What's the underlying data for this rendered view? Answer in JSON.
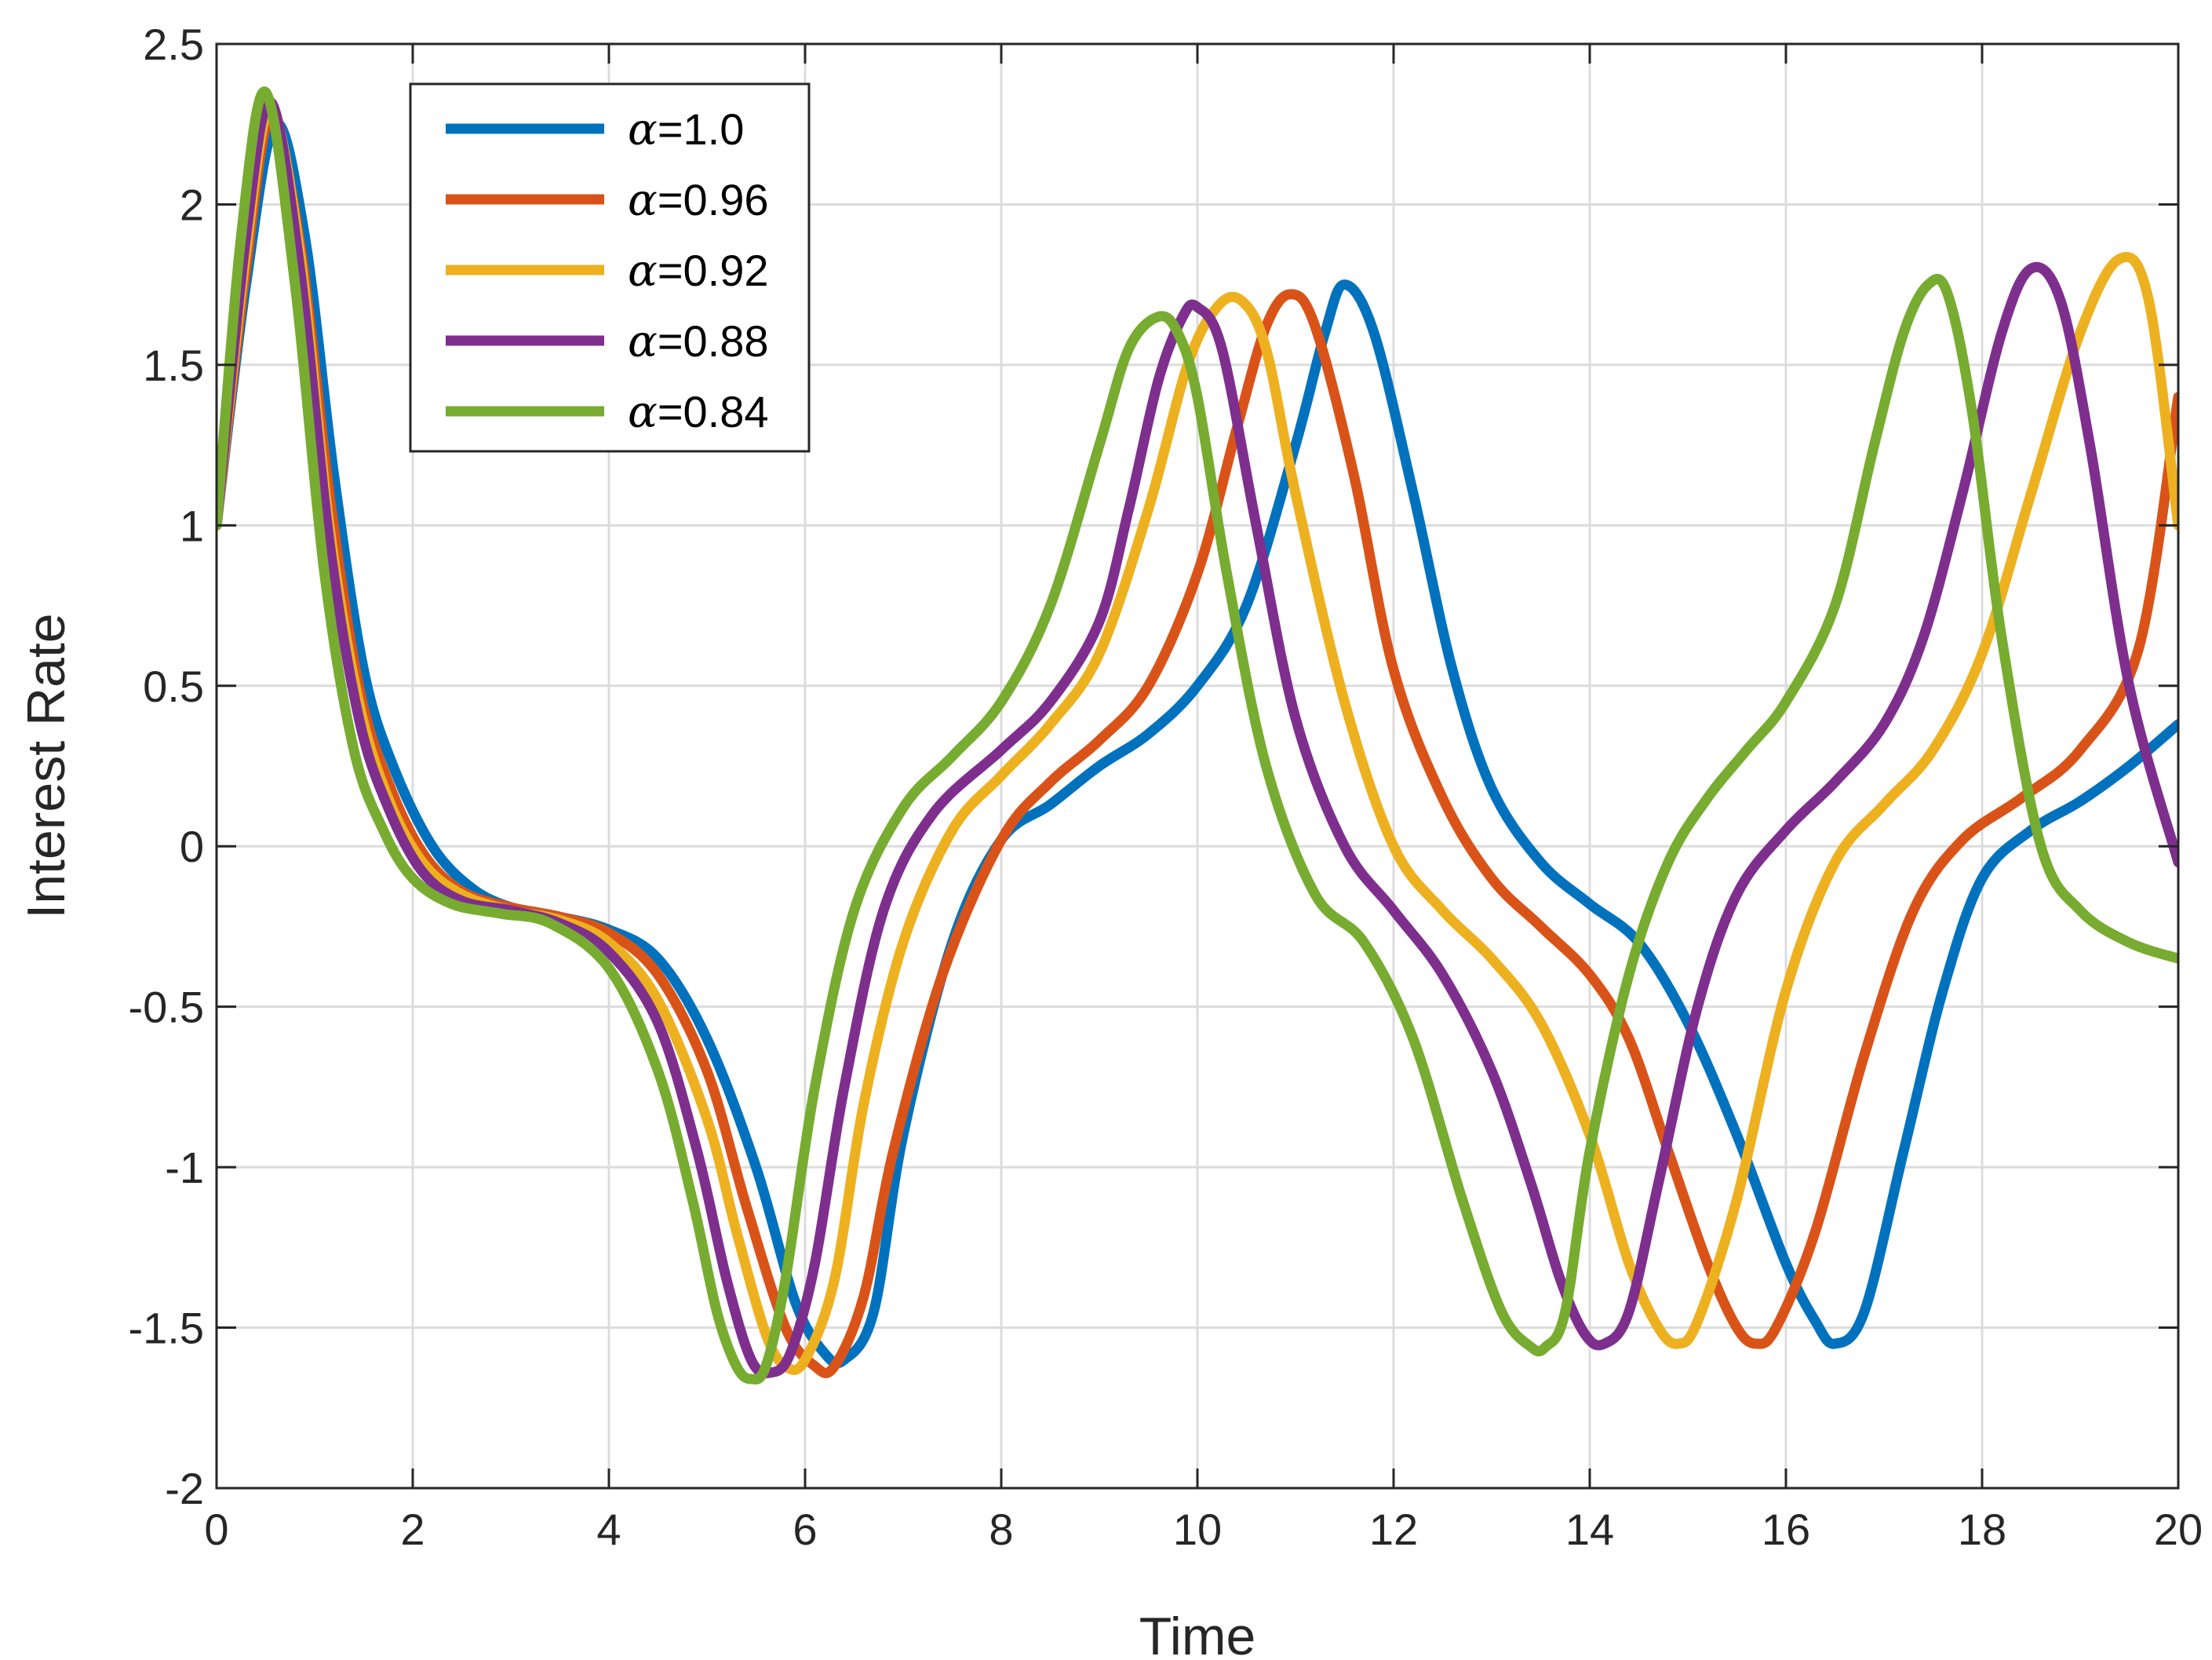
{
  "chart_data": {
    "type": "line",
    "title": "",
    "xlabel": "Time",
    "ylabel": "Interest Rate",
    "xlim": [
      0,
      20
    ],
    "ylim": [
      -2,
      2.5
    ],
    "xticks": [
      0,
      2,
      4,
      6,
      8,
      10,
      12,
      14,
      16,
      18,
      20
    ],
    "xtick_labels": [
      "0",
      "2",
      "4",
      "6",
      "8",
      "10",
      "12",
      "14",
      "16",
      "18",
      "20"
    ],
    "yticks": [
      -2,
      -1.5,
      -1,
      -0.5,
      0,
      0.5,
      1,
      1.5,
      2,
      2.5
    ],
    "ytick_labels": [
      "-2",
      "-1.5",
      "-1",
      "-0.5",
      "0",
      "0.5",
      "1",
      "1.5",
      "2",
      "2.5"
    ],
    "grid": true,
    "legend_position": "top-left",
    "series": [
      {
        "name": "α=1.0",
        "alpha_value": "=1.0",
        "color": "#0072BD",
        "x": [
          0,
          0.3,
          0.6,
          0.9,
          1.2,
          1.5,
          1.8,
          2.2,
          2.6,
          3.0,
          3.5,
          4.0,
          4.5,
          5.0,
          5.5,
          5.9,
          6.2,
          6.4,
          6.7,
          7.0,
          7.5,
          8.0,
          8.5,
          9.0,
          9.5,
          10.0,
          10.5,
          11.0,
          11.3,
          11.5,
          11.8,
          12.2,
          12.6,
          13.0,
          13.5,
          14.0,
          14.5,
          15.0,
          15.5,
          16.0,
          16.3,
          16.5,
          16.8,
          17.2,
          17.6,
          18.0,
          18.5,
          19.0,
          19.5,
          20.0
        ],
        "values": [
          1.0,
          1.75,
          2.25,
          1.9,
          1.15,
          0.55,
          0.25,
          0.0,
          -0.13,
          -0.19,
          -0.22,
          -0.26,
          -0.35,
          -0.6,
          -1.0,
          -1.42,
          -1.58,
          -1.6,
          -1.45,
          -0.9,
          -0.3,
          0.02,
          0.13,
          0.25,
          0.35,
          0.5,
          0.75,
          1.25,
          1.6,
          1.75,
          1.6,
          1.1,
          0.55,
          0.18,
          -0.05,
          -0.18,
          -0.3,
          -0.55,
          -0.9,
          -1.3,
          -1.48,
          -1.55,
          -1.45,
          -0.95,
          -0.45,
          -0.1,
          0.05,
          0.14,
          0.25,
          0.38
        ]
      },
      {
        "name": "α=0.96",
        "alpha_value": "=0.96",
        "color": "#D95319",
        "x": [
          0,
          0.3,
          0.55,
          0.85,
          1.15,
          1.45,
          1.75,
          2.1,
          2.5,
          3.0,
          3.5,
          4.0,
          4.5,
          5.0,
          5.4,
          5.8,
          6.1,
          6.3,
          6.6,
          6.9,
          7.4,
          8.0,
          8.5,
          9.0,
          9.5,
          10.0,
          10.4,
          10.7,
          10.95,
          11.2,
          11.6,
          12.0,
          12.5,
          13.0,
          13.5,
          14.0,
          14.4,
          14.8,
          15.2,
          15.5,
          15.7,
          15.9,
          16.3,
          16.8,
          17.3,
          17.8,
          18.4,
          19.0,
          19.6,
          20.0
        ],
        "values": [
          1.0,
          1.8,
          2.27,
          1.88,
          1.1,
          0.5,
          0.2,
          -0.02,
          -0.14,
          -0.19,
          -0.22,
          -0.27,
          -0.4,
          -0.7,
          -1.12,
          -1.5,
          -1.62,
          -1.62,
          -1.4,
          -0.95,
          -0.4,
          0.02,
          0.2,
          0.33,
          0.5,
          0.85,
          1.3,
          1.62,
          1.72,
          1.62,
          1.15,
          0.55,
          0.15,
          -0.1,
          -0.25,
          -0.4,
          -0.6,
          -0.95,
          -1.3,
          -1.5,
          -1.55,
          -1.5,
          -1.2,
          -0.65,
          -0.2,
          0.02,
          0.15,
          0.3,
          0.62,
          1.4
        ]
      },
      {
        "name": "α=0.92",
        "alpha_value": "=0.92",
        "color": "#EDB120",
        "x": [
          0,
          0.3,
          0.55,
          0.85,
          1.15,
          1.45,
          1.75,
          2.1,
          2.5,
          3.0,
          3.5,
          4.0,
          4.5,
          5.0,
          5.3,
          5.6,
          5.8,
          6.0,
          6.3,
          6.6,
          7.0,
          7.5,
          8.0,
          8.5,
          9.0,
          9.5,
          9.9,
          10.2,
          10.45,
          10.7,
          11.0,
          11.5,
          12.0,
          12.5,
          13.0,
          13.5,
          14.0,
          14.4,
          14.7,
          14.9,
          15.1,
          15.5,
          16.0,
          16.5,
          17.0,
          17.5,
          18.0,
          18.5,
          19.0,
          19.4,
          19.7,
          20.0
        ],
        "values": [
          1.0,
          1.85,
          2.3,
          1.85,
          1.0,
          0.45,
          0.15,
          -0.05,
          -0.15,
          -0.2,
          -0.23,
          -0.3,
          -0.48,
          -0.85,
          -1.2,
          -1.52,
          -1.62,
          -1.6,
          -1.35,
          -0.8,
          -0.3,
          0.05,
          0.22,
          0.38,
          0.6,
          1.05,
          1.5,
          1.68,
          1.7,
          1.55,
          1.1,
          0.45,
          0.0,
          -0.2,
          -0.35,
          -0.55,
          -0.9,
          -1.3,
          -1.5,
          -1.55,
          -1.48,
          -1.1,
          -0.45,
          -0.05,
          0.13,
          0.3,
          0.6,
          1.1,
          1.6,
          1.83,
          1.7,
          1.0
        ]
      },
      {
        "name": "α=0.88",
        "alpha_value": "=0.88",
        "color": "#7E2F8E",
        "x": [
          0,
          0.3,
          0.55,
          0.85,
          1.15,
          1.45,
          1.75,
          2.1,
          2.5,
          3.0,
          3.5,
          4.0,
          4.5,
          4.9,
          5.2,
          5.45,
          5.65,
          5.85,
          6.1,
          6.4,
          6.8,
          7.3,
          8.0,
          8.5,
          9.0,
          9.3,
          9.6,
          9.85,
          10.0,
          10.25,
          10.6,
          11.0,
          11.5,
          12.0,
          12.5,
          13.0,
          13.4,
          13.7,
          13.95,
          14.15,
          14.4,
          14.7,
          15.1,
          15.5,
          16.0,
          16.5,
          17.0,
          17.4,
          17.8,
          18.2,
          18.5,
          18.8,
          19.1,
          19.5,
          20.0
        ],
        "values": [
          1.0,
          1.9,
          2.32,
          1.8,
          0.95,
          0.4,
          0.12,
          -0.08,
          -0.17,
          -0.2,
          -0.24,
          -0.33,
          -0.55,
          -0.95,
          -1.35,
          -1.6,
          -1.64,
          -1.58,
          -1.3,
          -0.75,
          -0.2,
          0.1,
          0.3,
          0.45,
          0.7,
          1.05,
          1.45,
          1.65,
          1.68,
          1.55,
          1.0,
          0.4,
          0.0,
          -0.2,
          -0.4,
          -0.7,
          -1.05,
          -1.35,
          -1.52,
          -1.55,
          -1.45,
          -1.05,
          -0.5,
          -0.15,
          0.05,
          0.2,
          0.38,
          0.65,
          1.1,
          1.6,
          1.8,
          1.7,
          1.25,
          0.5,
          -0.05
        ]
      },
      {
        "name": "α=0.84",
        "alpha_value": "=0.84",
        "color": "#77AC30",
        "x": [
          0,
          0.25,
          0.5,
          0.8,
          1.1,
          1.4,
          1.7,
          2.0,
          2.4,
          2.9,
          3.4,
          4.0,
          4.5,
          4.85,
          5.1,
          5.3,
          5.45,
          5.6,
          5.8,
          6.1,
          6.5,
          7.0,
          7.5,
          8.0,
          8.5,
          9.0,
          9.3,
          9.6,
          9.8,
          10.0,
          10.3,
          10.7,
          11.2,
          11.7,
          12.2,
          12.7,
          13.1,
          13.4,
          13.55,
          13.75,
          14.0,
          14.4,
          14.8,
          15.2,
          15.6,
          16.0,
          16.5,
          16.9,
          17.2,
          17.45,
          17.65,
          17.9,
          18.2,
          18.6,
          19.0,
          19.5,
          20.0
        ],
        "values": [
          1.0,
          1.9,
          2.35,
          1.75,
          0.85,
          0.3,
          0.05,
          -0.1,
          -0.18,
          -0.21,
          -0.24,
          -0.38,
          -0.7,
          -1.1,
          -1.45,
          -1.62,
          -1.66,
          -1.62,
          -1.35,
          -0.75,
          -0.2,
          0.12,
          0.28,
          0.45,
          0.75,
          1.25,
          1.55,
          1.65,
          1.6,
          1.4,
          0.85,
          0.25,
          -0.15,
          -0.3,
          -0.6,
          -1.1,
          -1.45,
          -1.56,
          -1.56,
          -1.45,
          -0.95,
          -0.4,
          -0.05,
          0.15,
          0.3,
          0.45,
          0.75,
          1.25,
          1.6,
          1.75,
          1.72,
          1.35,
          0.65,
          0.0,
          -0.2,
          -0.3,
          -0.35
        ]
      }
    ]
  }
}
